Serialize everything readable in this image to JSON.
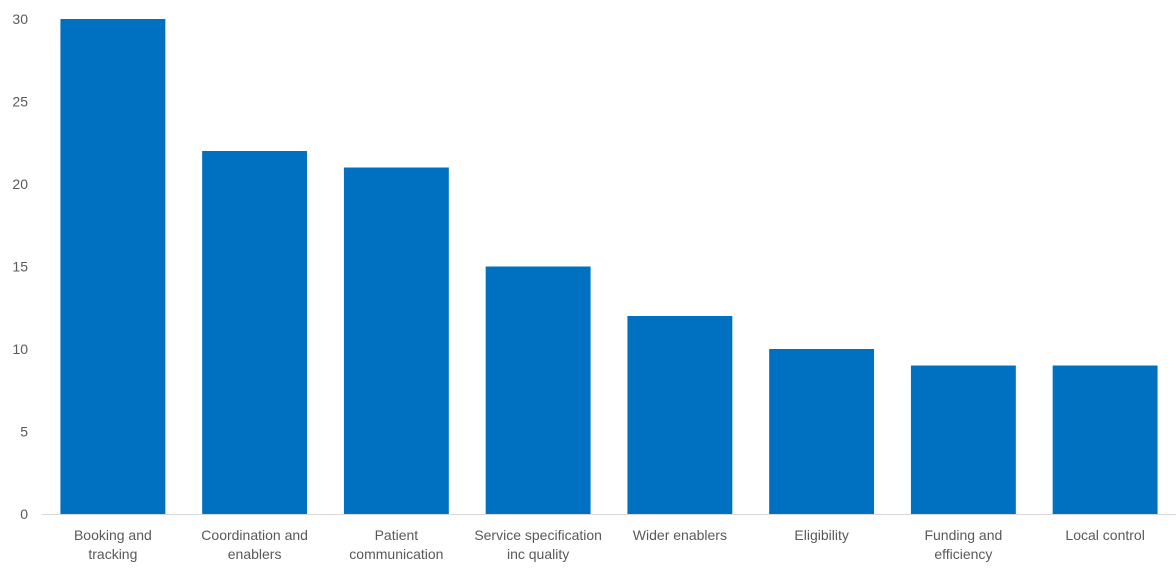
{
  "chart_data": {
    "type": "bar",
    "categories": [
      [
        "Booking and",
        "tracking"
      ],
      [
        "Coordination and",
        "enablers"
      ],
      [
        "Patient",
        "communication"
      ],
      [
        "Service specification",
        "inc quality"
      ],
      [
        "Wider enablers"
      ],
      [
        "Eligibility"
      ],
      [
        "Funding and",
        "efficiency"
      ],
      [
        "Local control"
      ]
    ],
    "values": [
      30,
      22,
      21,
      15,
      12,
      10,
      9,
      9
    ],
    "ylim": [
      0,
      30
    ],
    "yticks": [
      0,
      5,
      10,
      15,
      20,
      25,
      30
    ],
    "grid": false,
    "legend": "none",
    "bar_color": "#0070C0",
    "axis_color": "#D9D9D9",
    "text_color": "#595959"
  }
}
